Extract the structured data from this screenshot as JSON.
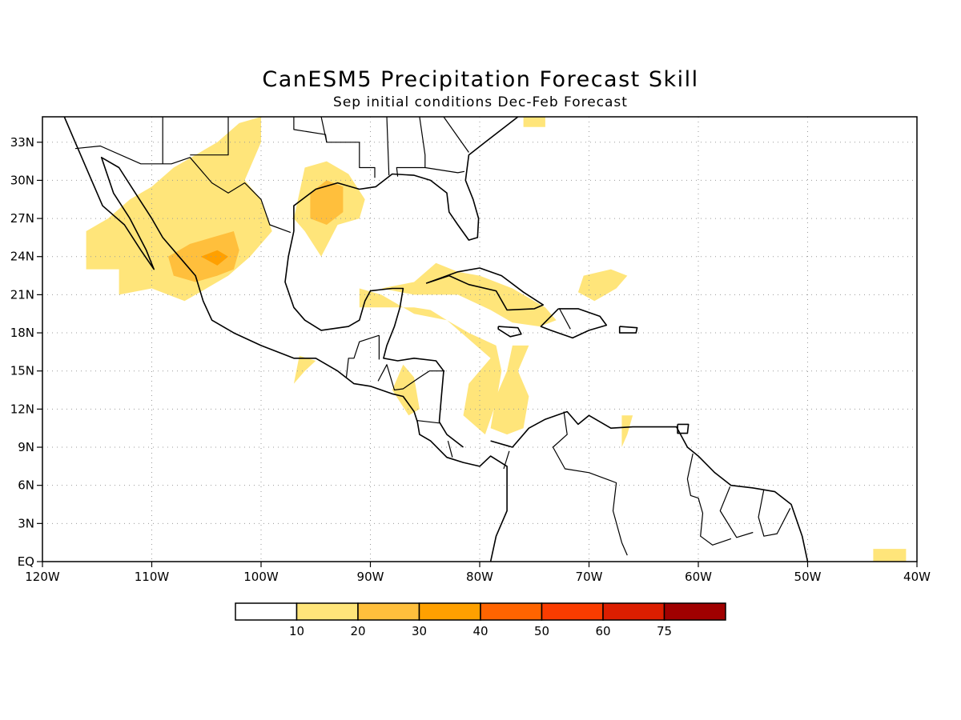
{
  "title": "CanESM5 Precipitation Forecast Skill",
  "subtitle": "Sep initial conditions  Dec-Feb Forecast",
  "map": {
    "lon_range": [
      -120,
      -40
    ],
    "lat_range": [
      0,
      35
    ],
    "grid": "dotted",
    "x_ticks": [
      "120W",
      "110W",
      "100W",
      "90W",
      "80W",
      "70W",
      "60W",
      "50W",
      "40W"
    ],
    "y_ticks": [
      "EQ",
      "3N",
      "6N",
      "9N",
      "12N",
      "15N",
      "18N",
      "21N",
      "24N",
      "27N",
      "30N",
      "33N"
    ]
  },
  "legend": {
    "colors": [
      "#ffffff",
      "#ffe57a",
      "#ffbf3c",
      "#ffa000",
      "#ff6400",
      "#fa3c00",
      "#dc1e00",
      "#a00000"
    ],
    "labels": [
      "10",
      "20",
      "30",
      "40",
      "50",
      "60",
      "75"
    ]
  },
  "skill_regions": [
    {
      "level": 1,
      "lonlat": [
        [
          -116,
          26
        ],
        [
          -114,
          27
        ],
        [
          -112,
          28.5
        ],
        [
          -110,
          29.5
        ],
        [
          -108,
          31
        ],
        [
          -106,
          32
        ],
        [
          -104,
          33
        ],
        [
          -102,
          34.5
        ],
        [
          -100,
          35
        ],
        [
          -100,
          33
        ],
        [
          -101.5,
          30
        ],
        [
          -100,
          28.5
        ],
        [
          -99,
          26
        ],
        [
          -101,
          24
        ],
        [
          -103,
          22.5
        ],
        [
          -105,
          21.5
        ],
        [
          -107,
          20.5
        ],
        [
          -108.5,
          21
        ],
        [
          -110,
          21.5
        ],
        [
          -113,
          21
        ],
        [
          -113,
          23
        ],
        [
          -116,
          23
        ]
      ]
    },
    {
      "level": 1,
      "lonlat": [
        [
          -96.5,
          29
        ],
        [
          -96,
          31
        ],
        [
          -94,
          31.5
        ],
        [
          -92,
          30.5
        ],
        [
          -90.5,
          28.5
        ],
        [
          -91,
          27
        ],
        [
          -93,
          26.5
        ],
        [
          -94.5,
          24
        ],
        [
          -96,
          26
        ],
        [
          -97,
          27
        ]
      ]
    },
    {
      "level": 1,
      "lonlat": [
        [
          -91,
          21.5
        ],
        [
          -91,
          20
        ],
        [
          -89,
          20
        ],
        [
          -86,
          20
        ],
        [
          -84.5,
          19.8
        ],
        [
          -83,
          19
        ],
        [
          -81,
          18
        ],
        [
          -78.5,
          17
        ],
        [
          -78,
          15
        ],
        [
          -78.5,
          12.5
        ],
        [
          -79.5,
          10
        ],
        [
          -81.5,
          11.5
        ],
        [
          -81,
          14
        ],
        [
          -79,
          16
        ],
        [
          -81,
          17.5
        ],
        [
          -83,
          19
        ],
        [
          -86,
          19.5
        ],
        [
          -89,
          21
        ]
      ]
    },
    {
      "level": 1,
      "lonlat": [
        [
          -89,
          21.5
        ],
        [
          -86,
          22
        ],
        [
          -84,
          23.5
        ],
        [
          -82,
          22.8
        ],
        [
          -80,
          22.5
        ],
        [
          -77,
          21.5
        ],
        [
          -74,
          20
        ],
        [
          -73,
          19
        ],
        [
          -74.5,
          18.5
        ],
        [
          -77,
          18.8
        ],
        [
          -79,
          19.8
        ],
        [
          -82,
          21
        ],
        [
          -86,
          21
        ]
      ]
    },
    {
      "level": 1,
      "lonlat": [
        [
          -78.5,
          13
        ],
        [
          -79,
          10.5
        ],
        [
          -77.5,
          10
        ],
        [
          -76,
          10.5
        ],
        [
          -75.5,
          13
        ],
        [
          -76.5,
          15
        ],
        [
          -75.5,
          17
        ],
        [
          -77,
          17
        ],
        [
          -77.5,
          15
        ]
      ]
    },
    {
      "level": 1,
      "lonlat": [
        [
          -87,
          15.5
        ],
        [
          -86,
          14.5
        ],
        [
          -85.5,
          12
        ],
        [
          -86.5,
          11.5
        ],
        [
          -88,
          13.5
        ]
      ]
    },
    {
      "level": 1,
      "lonlat": [
        [
          -97,
          14
        ],
        [
          -96,
          15
        ],
        [
          -95,
          15.8
        ],
        [
          -96.5,
          16.2
        ]
      ]
    },
    {
      "level": 1,
      "lonlat": [
        [
          -71,
          21.2
        ],
        [
          -70.5,
          22.5
        ],
        [
          -68,
          23
        ],
        [
          -66.5,
          22.5
        ],
        [
          -67.5,
          21.5
        ],
        [
          -69.5,
          20.5
        ]
      ]
    },
    {
      "level": 1,
      "lonlat": [
        [
          -67,
          11.5
        ],
        [
          -66,
          11.5
        ],
        [
          -66.5,
          10
        ],
        [
          -67,
          9
        ]
      ]
    },
    {
      "level": 1,
      "lonlat": [
        [
          -44,
          0
        ],
        [
          -44,
          1
        ],
        [
          -41,
          1
        ],
        [
          -41,
          0
        ]
      ]
    },
    {
      "level": 1,
      "lonlat": [
        [
          -76,
          35
        ],
        [
          -76,
          34.2
        ],
        [
          -74,
          34.2
        ],
        [
          -74,
          35
        ]
      ]
    },
    {
      "level": 2,
      "lonlat": [
        [
          -108.5,
          24
        ],
        [
          -106.5,
          25
        ],
        [
          -104.5,
          25.5
        ],
        [
          -102.5,
          26
        ],
        [
          -102,
          24.5
        ],
        [
          -102.5,
          23
        ],
        [
          -104,
          22.5
        ],
        [
          -106,
          22
        ],
        [
          -108,
          22.5
        ]
      ]
    },
    {
      "level": 2,
      "lonlat": [
        [
          -95.5,
          29
        ],
        [
          -94,
          30
        ],
        [
          -92.5,
          29.5
        ],
        [
          -92.5,
          27.5
        ],
        [
          -94,
          26.5
        ],
        [
          -95.5,
          27
        ]
      ]
    },
    {
      "level": 3,
      "lonlat": [
        [
          -105.5,
          24
        ],
        [
          -104,
          24.5
        ],
        [
          -103,
          24
        ],
        [
          -104,
          23.3
        ]
      ]
    }
  ],
  "coastlines": [
    [
      [
        -118,
        35
      ],
      [
        -117,
        33
      ],
      [
        -115.5,
        30
      ],
      [
        -114.5,
        28
      ],
      [
        -112.5,
        26.5
      ],
      [
        -111,
        24.5
      ],
      [
        -109.8,
        23
      ],
      [
        -110.5,
        24.5
      ],
      [
        -112,
        27
      ],
      [
        -113.5,
        29
      ],
      [
        -114.6,
        31.8
      ],
      [
        -113,
        31
      ],
      [
        -111.5,
        29
      ],
      [
        -110,
        27
      ],
      [
        -109,
        25.5
      ],
      [
        -107.5,
        24
      ],
      [
        -106,
        22.5
      ],
      [
        -105.3,
        20.5
      ],
      [
        -104.5,
        19
      ],
      [
        -102.5,
        18
      ],
      [
        -100,
        17
      ],
      [
        -97,
        16
      ],
      [
        -95,
        16
      ],
      [
        -93,
        15
      ],
      [
        -91.5,
        14
      ],
      [
        -90,
        13.8
      ],
      [
        -88,
        13.2
      ],
      [
        -87,
        13
      ],
      [
        -86,
        11.8
      ],
      [
        -85.7,
        11
      ],
      [
        -85.5,
        10
      ],
      [
        -84.5,
        9.5
      ],
      [
        -83,
        8.2
      ],
      [
        -81.5,
        7.8
      ],
      [
        -80,
        7.5
      ],
      [
        -79,
        8.3
      ],
      [
        -77.5,
        7.5
      ],
      [
        -77.5,
        4
      ],
      [
        -78.5,
        2
      ],
      [
        -79,
        0
      ]
    ],
    [
      [
        -79,
        9.5
      ],
      [
        -77,
        9
      ],
      [
        -75.5,
        10.5
      ],
      [
        -74,
        11.2
      ],
      [
        -72,
        11.8
      ],
      [
        -71,
        10.8
      ],
      [
        -70,
        11.5
      ],
      [
        -68,
        10.5
      ],
      [
        -66,
        10.6
      ],
      [
        -64,
        10.6
      ],
      [
        -62,
        10.6
      ],
      [
        -61,
        9
      ],
      [
        -60,
        8.3
      ],
      [
        -58.5,
        7
      ],
      [
        -57,
        6
      ],
      [
        -55,
        5.8
      ],
      [
        -53,
        5.5
      ],
      [
        -51.5,
        4.5
      ],
      [
        -50.5,
        2
      ],
      [
        -50,
        0
      ]
    ],
    [
      [
        -97,
        26
      ],
      [
        -97.5,
        24
      ],
      [
        -97.8,
        22
      ],
      [
        -97,
        20
      ],
      [
        -96,
        19
      ],
      [
        -94.5,
        18.2
      ],
      [
        -92,
        18.5
      ],
      [
        -91,
        19
      ],
      [
        -90.5,
        20.5
      ],
      [
        -90,
        21.3
      ],
      [
        -88,
        21.5
      ],
      [
        -87,
        21.5
      ],
      [
        -87.3,
        20
      ],
      [
        -87.8,
        18.5
      ],
      [
        -88.5,
        17
      ],
      [
        -88.8,
        16
      ],
      [
        -87.5,
        15.8
      ],
      [
        -86,
        16
      ],
      [
        -84,
        15.8
      ],
      [
        -83.3,
        15
      ],
      [
        -83.5,
        13
      ],
      [
        -83.7,
        11
      ],
      [
        -83,
        10
      ],
      [
        -81.5,
        9
      ]
    ],
    [
      [
        -97,
        26
      ],
      [
        -97,
        28
      ],
      [
        -95,
        29.3
      ],
      [
        -93,
        29.8
      ],
      [
        -91,
        29.3
      ],
      [
        -89.5,
        29.5
      ],
      [
        -88,
        30.5
      ],
      [
        -86,
        30.4
      ],
      [
        -84.5,
        30
      ],
      [
        -83,
        29
      ],
      [
        -82.8,
        27.5
      ],
      [
        -82,
        26.5
      ],
      [
        -81,
        25.3
      ],
      [
        -80.2,
        25.5
      ],
      [
        -80.1,
        27
      ],
      [
        -80.6,
        28.5
      ],
      [
        -81.3,
        30
      ],
      [
        -81,
        32
      ],
      [
        -79.5,
        33
      ],
      [
        -78,
        34
      ],
      [
        -76.5,
        35
      ]
    ],
    [
      [
        -84.9,
        21.9
      ],
      [
        -82,
        22.8
      ],
      [
        -80,
        23.1
      ],
      [
        -78,
        22.5
      ],
      [
        -76,
        21.2
      ],
      [
        -74.2,
        20.2
      ],
      [
        -75,
        19.9
      ],
      [
        -77.5,
        19.8
      ],
      [
        -78.5,
        21.3
      ],
      [
        -81,
        21.8
      ],
      [
        -82.8,
        22.5
      ],
      [
        -84.9,
        21.9
      ]
    ],
    [
      [
        -72.8,
        19.9
      ],
      [
        -71,
        19.9
      ],
      [
        -69,
        19.3
      ],
      [
        -68.4,
        18.6
      ],
      [
        -70,
        18.2
      ],
      [
        -71.5,
        17.6
      ],
      [
        -73.5,
        18.2
      ],
      [
        -74.4,
        18.5
      ],
      [
        -72.8,
        19.9
      ]
    ],
    [
      [
        -78.3,
        18.5
      ],
      [
        -76.5,
        18.4
      ],
      [
        -76.2,
        17.9
      ],
      [
        -77.2,
        17.7
      ],
      [
        -78.3,
        18.3
      ],
      [
        -78.3,
        18.5
      ]
    ],
    [
      [
        -67.2,
        18.5
      ],
      [
        -65.6,
        18.4
      ],
      [
        -65.7,
        18
      ],
      [
        -67.2,
        18
      ],
      [
        -67.2,
        18.5
      ]
    ],
    [
      [
        -61.9,
        10.8
      ],
      [
        -60.9,
        10.8
      ],
      [
        -61,
        10.1
      ],
      [
        -61.9,
        10.1
      ],
      [
        -61.9,
        10.8
      ]
    ]
  ],
  "borders": [
    [
      [
        -117,
        32.5
      ],
      [
        -114.7,
        32.7
      ],
      [
        -111,
        31.3
      ],
      [
        -108.2,
        31.3
      ],
      [
        -106.5,
        31.8
      ],
      [
        -104.5,
        29.8
      ],
      [
        -103,
        29
      ],
      [
        -101.5,
        29.8
      ],
      [
        -100,
        28.5
      ],
      [
        -99.2,
        26.5
      ],
      [
        -97.3,
        25.9
      ]
    ],
    [
      [
        -92.2,
        14.5
      ],
      [
        -92,
        16
      ],
      [
        -91.5,
        16
      ],
      [
        -91,
        17.3
      ],
      [
        -89.2,
        17.8
      ]
    ],
    [
      [
        -89.2,
        17.8
      ],
      [
        -89.2,
        15.9
      ]
    ],
    [
      [
        -89.3,
        14.2
      ],
      [
        -88.5,
        15.5
      ],
      [
        -87.8,
        13.5
      ],
      [
        -87,
        13.6
      ],
      [
        -85.5,
        14.5
      ],
      [
        -84.6,
        15
      ],
      [
        -83.2,
        15
      ]
    ],
    [
      [
        -85.7,
        11.1
      ],
      [
        -83.7,
        10.9
      ]
    ],
    [
      [
        -82.9,
        9.5
      ],
      [
        -82.5,
        8.2
      ]
    ],
    [
      [
        -77.3,
        8.7
      ],
      [
        -77.8,
        7.3
      ]
    ],
    [
      [
        -72.3,
        11.8
      ],
      [
        -72,
        10
      ],
      [
        -73.3,
        9
      ],
      [
        -72.2,
        7.3
      ],
      [
        -70,
        7
      ],
      [
        -67.5,
        6.2
      ],
      [
        -67.8,
        4
      ],
      [
        -67,
        1.5
      ],
      [
        -66.5,
        0.5
      ]
    ],
    [
      [
        -72.7,
        19.9
      ],
      [
        -71.7,
        18.3
      ]
    ],
    [
      [
        -60.5,
        8.5
      ],
      [
        -61,
        6.5
      ],
      [
        -60.7,
        5.2
      ],
      [
        -60,
        5
      ],
      [
        -59.6,
        3.8
      ],
      [
        -59.8,
        2
      ],
      [
        -58.7,
        1.3
      ],
      [
        -57,
        1.8
      ]
    ],
    [
      [
        -57.1,
        5.9
      ],
      [
        -58,
        4
      ],
      [
        -56.5,
        1.9
      ],
      [
        -55,
        2.3
      ]
    ],
    [
      [
        -54,
        5.7
      ],
      [
        -54.5,
        3.5
      ],
      [
        -54,
        2
      ],
      [
        -52.8,
        2.2
      ],
      [
        -51.6,
        4.2
      ]
    ],
    [
      [
        -109,
        35
      ],
      [
        -109,
        31.3
      ]
    ],
    [
      [
        -103,
        35
      ],
      [
        -103,
        32
      ],
      [
        -106.5,
        32
      ]
    ],
    [
      [
        -94.5,
        35
      ],
      [
        -94,
        33
      ],
      [
        -91,
        33
      ],
      [
        -91,
        31
      ],
      [
        -89.6,
        31
      ],
      [
        -89.6,
        30.2
      ]
    ],
    [
      [
        -88.5,
        35
      ],
      [
        -88.3,
        30.4
      ]
    ],
    [
      [
        -85.5,
        35
      ],
      [
        -85,
        32
      ],
      [
        -85,
        31
      ],
      [
        -87.6,
        31
      ],
      [
        -87.5,
        30.3
      ]
    ],
    [
      [
        -85,
        31
      ],
      [
        -82,
        30.6
      ],
      [
        -81.4,
        30.7
      ]
    ],
    [
      [
        -83.3,
        35
      ],
      [
        -81,
        32.2
      ]
    ],
    [
      [
        -97,
        35
      ],
      [
        -97,
        34
      ],
      [
        -94.1,
        33.6
      ],
      [
        -94,
        33
      ]
    ]
  ]
}
